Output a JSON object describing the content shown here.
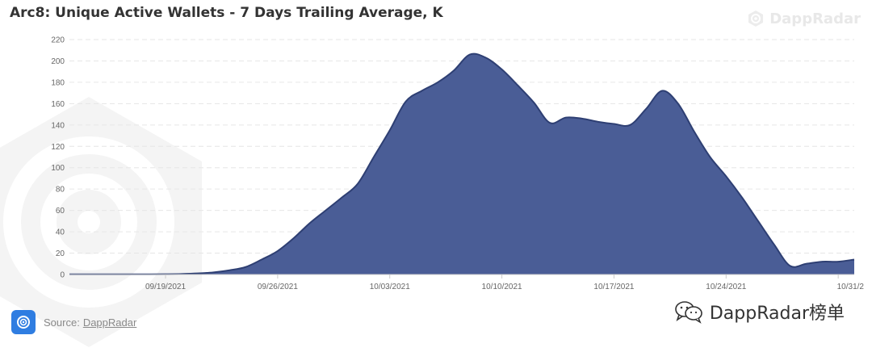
{
  "header": {
    "title": "Arc8: Unique Active Wallets - 7 Days Trailing Average, K",
    "brand_watermark": "DappRadar"
  },
  "footer": {
    "source_label": "Source:",
    "source_link": "DappRadar",
    "wechat_label": "DappRadar榜单"
  },
  "icons": {
    "brand": "dappradar-logo-icon",
    "source": "dappradar-logo-icon",
    "wechat": "wechat-icon"
  },
  "colors": {
    "area_fill": "#4a5d96",
    "area_stroke": "#2e3f73",
    "grid": "#e6e6e6",
    "source_icon_bg": "#2f7de1"
  },
  "chart_data": {
    "type": "area",
    "title": "Arc8: Unique Active Wallets - 7 Days Trailing Average, K",
    "xlabel": "",
    "ylabel": "",
    "ylim": [
      0,
      220
    ],
    "yticks": [
      0,
      20,
      40,
      60,
      80,
      100,
      120,
      140,
      160,
      180,
      200,
      220
    ],
    "xticks": [
      "09/19/2021",
      "09/26/2021",
      "10/03/2021",
      "10/10/2021",
      "10/17/2021",
      "10/24/2021",
      "10/31/2"
    ],
    "grid": true,
    "legend": "none",
    "series": [
      {
        "x": [
          "09/13/2021",
          "09/14/2021",
          "09/15/2021",
          "09/16/2021",
          "09/17/2021",
          "09/18/2021",
          "09/19/2021",
          "09/20/2021",
          "09/21/2021",
          "09/22/2021",
          "09/23/2021",
          "09/24/2021",
          "09/25/2021",
          "09/26/2021",
          "09/27/2021",
          "09/28/2021",
          "09/29/2021",
          "09/30/2021",
          "10/01/2021",
          "10/02/2021",
          "10/03/2021",
          "10/04/2021",
          "10/05/2021",
          "10/06/2021",
          "10/07/2021",
          "10/08/2021",
          "10/09/2021",
          "10/10/2021",
          "10/11/2021",
          "10/12/2021",
          "10/13/2021",
          "10/14/2021",
          "10/15/2021",
          "10/16/2021",
          "10/17/2021",
          "10/18/2021",
          "10/19/2021",
          "10/20/2021",
          "10/21/2021",
          "10/22/2021",
          "10/23/2021",
          "10/24/2021",
          "10/25/2021",
          "10/26/2021",
          "10/27/2021",
          "10/28/2021",
          "10/29/2021",
          "10/30/2021",
          "10/31/2021",
          "11/01/2021"
        ],
        "values": [
          0.2,
          0.2,
          0.2,
          0.2,
          0.2,
          0.2,
          0.3,
          0.5,
          1,
          2,
          4,
          7,
          14,
          22,
          34,
          48,
          60,
          72,
          85,
          110,
          135,
          162,
          172,
          180,
          191,
          206,
          203,
          192,
          177,
          161,
          142,
          147,
          146,
          143,
          141,
          140,
          155,
          172,
          160,
          134,
          110,
          92,
          72,
          50,
          28,
          8,
          10,
          12,
          12,
          14
        ]
      }
    ]
  }
}
